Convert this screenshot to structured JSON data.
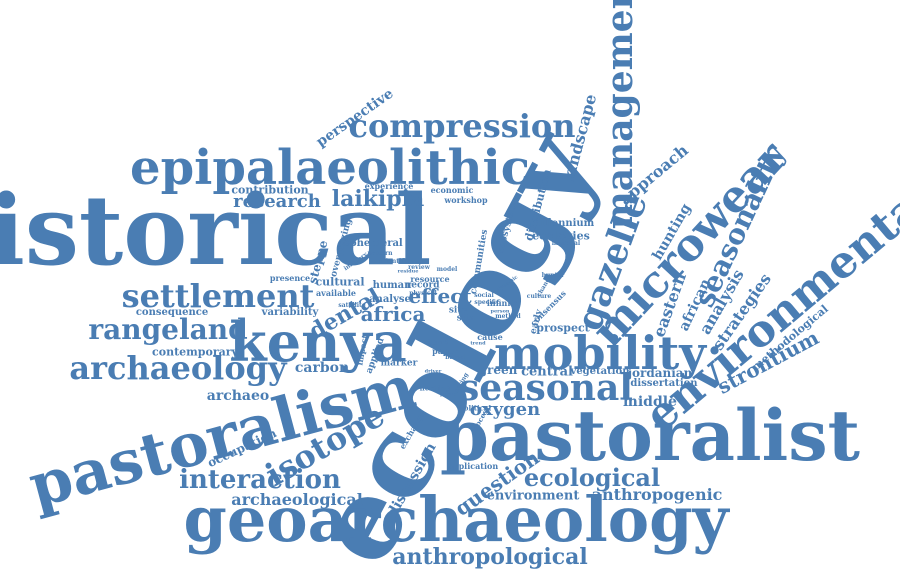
{
  "colors": {
    "word": "#4a7db3",
    "background": "#ffffff"
  },
  "words": [
    {
      "id": "historical",
      "text": "historical"
    },
    {
      "id": "ecology",
      "text": "ecology"
    },
    {
      "id": "pastoralist",
      "text": "pastoralist"
    },
    {
      "id": "geoarchaeology",
      "text": "geoarchaeology"
    },
    {
      "id": "pastoralism",
      "text": "pastoralism"
    },
    {
      "id": "epipalaeolithic",
      "text": "epipalaeolithic"
    },
    {
      "id": "mobility",
      "text": "mobility"
    },
    {
      "id": "kenya",
      "text": "kenya"
    },
    {
      "id": "environmental",
      "text": "environmental"
    },
    {
      "id": "microwear",
      "text": "microwear"
    },
    {
      "id": "seasonal",
      "text": "seasonal"
    },
    {
      "id": "management",
      "text": "management"
    },
    {
      "id": "gazelle",
      "text": "gazelle"
    },
    {
      "id": "compression",
      "text": "compression"
    },
    {
      "id": "settlement",
      "text": "settlement"
    },
    {
      "id": "archaeology",
      "text": "archaeology"
    },
    {
      "id": "rangeland",
      "text": "rangeland"
    },
    {
      "id": "isotope",
      "text": "isotope"
    },
    {
      "id": "seasonality",
      "text": "seasonality"
    },
    {
      "id": "interaction",
      "text": "interaction"
    },
    {
      "id": "ecological",
      "text": "ecological"
    },
    {
      "id": "anthropological",
      "text": "anthropological"
    },
    {
      "id": "strontium",
      "text": "strontium"
    },
    {
      "id": "laikipia",
      "text": "laikipia"
    },
    {
      "id": "research",
      "text": "research"
    },
    {
      "id": "dental",
      "text": "dental"
    },
    {
      "id": "africa",
      "text": "africa"
    },
    {
      "id": "effect",
      "text": "effect"
    },
    {
      "id": "oxygen",
      "text": "oxygen"
    },
    {
      "id": "question",
      "text": "question"
    },
    {
      "id": "discussion",
      "text": "discussion"
    },
    {
      "id": "archaeological",
      "text": "archaeological"
    },
    {
      "id": "environment",
      "text": "environment"
    },
    {
      "id": "anthropogenic",
      "text": "anthropogenic"
    },
    {
      "id": "perspective",
      "text": "perspective"
    },
    {
      "id": "landscape",
      "text": "landscape"
    },
    {
      "id": "approach",
      "text": "approach"
    },
    {
      "id": "hunting",
      "text": "hunting"
    },
    {
      "id": "eastern",
      "text": "eastern"
    },
    {
      "id": "african",
      "text": "african"
    },
    {
      "id": "analysis",
      "text": "analysis"
    },
    {
      "id": "strategies",
      "text": "strategies"
    },
    {
      "id": "methodological",
      "text": "methodological"
    },
    {
      "id": "middle",
      "text": "middle"
    },
    {
      "id": "jordanian",
      "text": "jordanian"
    },
    {
      "id": "dissertation",
      "text": "dissertation"
    },
    {
      "id": "central",
      "text": "central"
    },
    {
      "id": "green",
      "text": "green"
    },
    {
      "id": "vegetation",
      "text": "vegetation"
    },
    {
      "id": "carbon",
      "text": "carbon"
    },
    {
      "id": "archaeo",
      "text": "archaeo"
    },
    {
      "id": "contemporary",
      "text": "contemporary"
    },
    {
      "id": "consequence",
      "text": "consequence"
    },
    {
      "id": "variability",
      "text": "variability"
    },
    {
      "id": "occupation",
      "text": "occupation"
    },
    {
      "id": "contribution",
      "text": "contribution"
    },
    {
      "id": "steppe",
      "text": "steppe"
    },
    {
      "id": "cultural",
      "text": "cultural"
    },
    {
      "id": "human",
      "text": "human"
    },
    {
      "id": "analyse",
      "text": "analyse"
    },
    {
      "id": "ephemeral",
      "text": "ephemeral"
    },
    {
      "id": "overgrazing",
      "text": "overgrazing"
    },
    {
      "id": "distribution",
      "text": "distribution"
    },
    {
      "id": "ecosystem",
      "text": "ecosystem"
    },
    {
      "id": "communities",
      "text": "communities"
    },
    {
      "id": "millennium",
      "text": "millennium"
    },
    {
      "id": "ecologies",
      "text": "ecologies"
    },
    {
      "id": "experience",
      "text": "experience"
    },
    {
      "id": "economic",
      "text": "economic"
    },
    {
      "id": "workshop",
      "text": "workshop"
    },
    {
      "id": "presence",
      "text": "presence"
    },
    {
      "id": "available",
      "text": "available"
    },
    {
      "id": "record",
      "text": "record"
    },
    {
      "id": "resource",
      "text": "resource"
    },
    {
      "id": "prospect",
      "text": "prospect"
    },
    {
      "id": "early",
      "text": "early"
    },
    {
      "id": "consensus",
      "text": "consensus"
    },
    {
      "id": "marker",
      "text": "marker"
    },
    {
      "id": "applied",
      "text": "applied"
    },
    {
      "id": "impact",
      "text": "impact"
    },
    {
      "id": "herding",
      "text": "herding"
    },
    {
      "id": "cause",
      "text": "cause"
    },
    {
      "id": "paper",
      "text": "paper"
    },
    {
      "id": "term",
      "text": "term"
    },
    {
      "id": "infinite",
      "text": "infinite"
    },
    {
      "id": "sita",
      "text": "sita"
    },
    {
      "id": "site",
      "text": "site"
    },
    {
      "id": "political",
      "text": "political"
    },
    {
      "id": "exchange",
      "text": "exchange"
    },
    {
      "id": "application",
      "text": "application"
    },
    {
      "id": "material",
      "text": "material"
    },
    {
      "id": "satellite",
      "text": "satellite"
    },
    {
      "id": "scientific",
      "text": "scientific"
    },
    {
      "id": "physical",
      "text": "physical"
    },
    {
      "id": "imagery",
      "text": "imagery"
    },
    {
      "id": "pattern",
      "text": "pattern"
    },
    {
      "id": "method",
      "text": "method"
    },
    {
      "id": "specific",
      "text": "specific"
    },
    {
      "id": "social",
      "text": "social"
    },
    {
      "id": "person",
      "text": "person"
    },
    {
      "id": "hunter",
      "text": "hunter"
    },
    {
      "id": "culture",
      "text": "culture"
    },
    {
      "id": "model",
      "text": "model"
    },
    {
      "id": "review",
      "text": "review"
    },
    {
      "id": "trend",
      "text": "trend"
    },
    {
      "id": "broad",
      "text": "broad"
    },
    {
      "id": "driver",
      "text": "driver"
    },
    {
      "id": "period",
      "text": "period"
    },
    {
      "id": "process",
      "text": "process"
    },
    {
      "id": "change",
      "text": "change"
    },
    {
      "id": "residue",
      "text": "residue"
    },
    {
      "id": "dynamic",
      "text": "dynamic"
    },
    {
      "id": "spring",
      "text": "spring"
    }
  ]
}
